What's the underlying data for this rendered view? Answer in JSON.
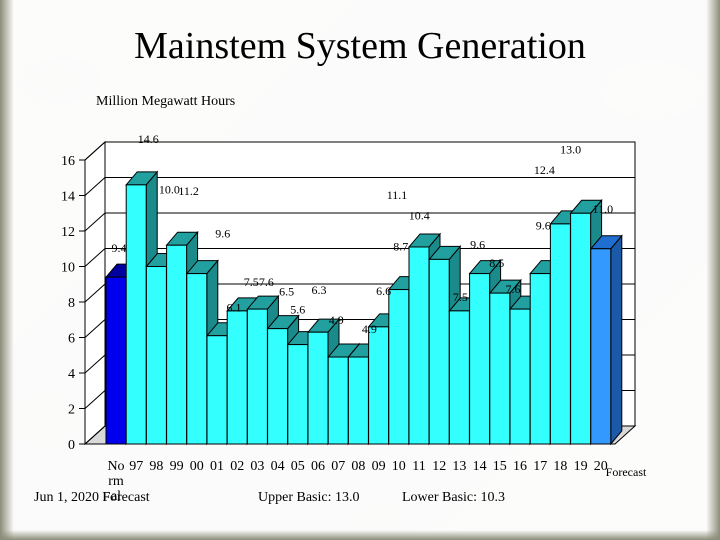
{
  "slide": {
    "title": "Mainstem System Generation",
    "unit_label": "Million Megawatt Hours",
    "date_note": "Jun 1, 2020 F",
    "date_note_tail": "Forecast",
    "upper_basic": "Upper Basic: 13.0",
    "lower_basic": "Lower Basic: 10.3"
  },
  "colors": {
    "normal_bar": "#0000ee",
    "historic_bar": "#33ffff",
    "forecast_bar": "#3399ff",
    "bar_top_cyan": "#22a0a0",
    "bar_side_cyan": "#1a8a8a"
  },
  "chart_data": {
    "type": "bar",
    "title": "Mainstem System Generation",
    "ylabel": "Million Megawatt Hours",
    "ylim": [
      0,
      16
    ],
    "yticks": [
      0,
      2,
      4,
      6,
      8,
      10,
      12,
      14,
      16
    ],
    "categories": [
      "Normal",
      "97",
      "98",
      "99",
      "00",
      "01",
      "02",
      "03",
      "04",
      "05",
      "06",
      "07",
      "08",
      "09",
      "10",
      "11",
      "12",
      "13",
      "14",
      "15",
      "16",
      "17",
      "18",
      "19",
      "20"
    ],
    "tick_labels": [
      "No\nrm\nal",
      "97",
      "98",
      "99",
      "00",
      "01",
      "02",
      "03",
      "04",
      "05",
      "06",
      "07",
      "08",
      "09",
      "10",
      "11",
      "12",
      "13",
      "14",
      "15",
      "16",
      "17",
      "18",
      "19",
      "20"
    ],
    "values": [
      9.4,
      14.6,
      10.0,
      11.2,
      9.6,
      6.1,
      7.5,
      7.6,
      6.5,
      5.6,
      6.3,
      4.9,
      4.9,
      6.6,
      8.7,
      11.1,
      10.4,
      7.5,
      9.6,
      8.5,
      7.6,
      9.6,
      12.4,
      13.0,
      11.0
    ],
    "data_labels": [
      "9.4",
      "14.6",
      "10.0",
      "11.2",
      "9.6",
      "6.1",
      "7.5",
      "7.6",
      "6.5",
      "5.6",
      "6.3",
      "4.9",
      "4.9",
      "6.6",
      "8.7",
      "11.1",
      "10.4",
      "7.5",
      "9.6",
      "8.5",
      "7.6",
      "9.6",
      "12.4",
      "13.0",
      "11.0"
    ],
    "bar_kinds": [
      "normal",
      "historic",
      "historic",
      "historic",
      "historic",
      "historic",
      "historic",
      "historic",
      "historic",
      "historic",
      "historic",
      "historic",
      "historic",
      "historic",
      "historic",
      "historic",
      "historic",
      "historic",
      "historic",
      "historic",
      "historic",
      "historic",
      "historic",
      "historic",
      "forecast"
    ],
    "forecast_label": "Forecast"
  }
}
